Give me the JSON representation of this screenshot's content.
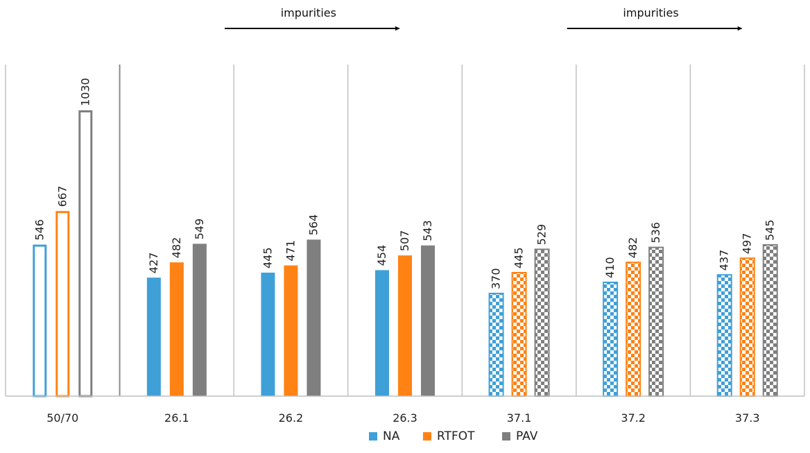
{
  "chart_data": {
    "type": "bar",
    "title": "",
    "xlabel": "",
    "ylabel": "",
    "ylim": [
      0,
      1100
    ],
    "grid": false,
    "legend_position": "bottom-center",
    "categories": [
      "50/70",
      "26.1",
      "26.2",
      "26.3",
      "37.1",
      "37.2",
      "37.3"
    ],
    "series": [
      {
        "name": "NA",
        "color": "#3fa0d8",
        "values": [
          546,
          427,
          445,
          454,
          370,
          410,
          437
        ]
      },
      {
        "name": "RTFOT",
        "color": "#ff8214",
        "values": [
          667,
          482,
          471,
          507,
          445,
          482,
          497
        ]
      },
      {
        "name": "PAV",
        "color": "#7f7f7f",
        "values": [
          1030,
          549,
          564,
          543,
          529,
          536,
          545
        ]
      }
    ],
    "bar_styles": [
      "outline",
      "solid",
      "solid",
      "solid",
      "checkered",
      "checkered",
      "checkered"
    ],
    "annotations": [
      {
        "text": "impurities",
        "arrow": "right",
        "from_category": "26.1",
        "to_category": "26.3"
      },
      {
        "text": "impurities",
        "arrow": "right",
        "from_category": "37.1",
        "to_category": "37.3"
      }
    ]
  }
}
